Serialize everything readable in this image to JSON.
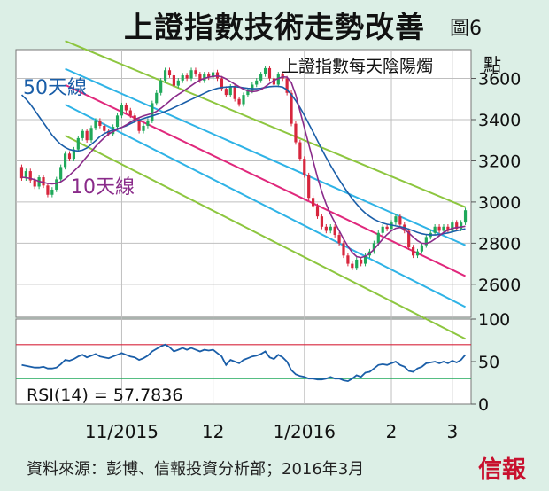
{
  "title": "上證指數技術走勢改善",
  "figure_label": "圖6",
  "source": "資料來源：彭博、信報投資分析部；2016年3月",
  "logo": "信報",
  "chart_data": {
    "type": "candlestick",
    "main_panel": {
      "legend_text": "上證指數每天陰陽燭",
      "unit_label": "點",
      "ylim": [
        2440,
        3740
      ],
      "yticks": [
        2600,
        2800,
        3000,
        3200,
        3400,
        3600
      ],
      "ma50_label": "50天線",
      "ma10_label": "10天線",
      "colors": {
        "up": "#1fa85a",
        "down": "#d7263d",
        "ma50": "#1a5ea8",
        "ma10": "#8a2b8a",
        "channel_mid": "#e0287c",
        "channel_blue": "#2fb3e6",
        "channel_green": "#8dc63f"
      },
      "candles": [
        [
          3170,
          3115
        ],
        [
          3115,
          3150
        ],
        [
          3150,
          3105
        ],
        [
          3105,
          3075
        ],
        [
          3075,
          3120
        ],
        [
          3120,
          3080
        ],
        [
          3080,
          3035
        ],
        [
          3035,
          3060
        ],
        [
          3060,
          3110
        ],
        [
          3110,
          3170
        ],
        [
          3170,
          3235
        ],
        [
          3235,
          3210
        ],
        [
          3210,
          3255
        ],
        [
          3255,
          3310
        ],
        [
          3310,
          3345
        ],
        [
          3345,
          3300
        ],
        [
          3300,
          3360
        ],
        [
          3360,
          3395
        ],
        [
          3395,
          3370
        ],
        [
          3370,
          3345
        ],
        [
          3345,
          3330
        ],
        [
          3330,
          3365
        ],
        [
          3365,
          3420
        ],
        [
          3420,
          3470
        ],
        [
          3470,
          3445
        ],
        [
          3445,
          3420
        ],
        [
          3420,
          3395
        ],
        [
          3395,
          3345
        ],
        [
          3345,
          3370
        ],
        [
          3370,
          3395
        ],
        [
          3395,
          3480
        ],
        [
          3480,
          3530
        ],
        [
          3530,
          3590
        ],
        [
          3590,
          3640
        ],
        [
          3640,
          3615
        ],
        [
          3615,
          3565
        ],
        [
          3565,
          3590
        ],
        [
          3590,
          3615
        ],
        [
          3615,
          3600
        ],
        [
          3600,
          3640
        ],
        [
          3640,
          3620
        ],
        [
          3620,
          3590
        ],
        [
          3590,
          3620
        ],
        [
          3620,
          3605
        ],
        [
          3605,
          3630
        ],
        [
          3630,
          3600
        ],
        [
          3600,
          3550
        ],
        [
          3550,
          3520
        ],
        [
          3520,
          3560
        ],
        [
          3560,
          3500
        ],
        [
          3500,
          3475
        ],
        [
          3475,
          3520
        ],
        [
          3520,
          3540
        ],
        [
          3540,
          3570
        ],
        [
          3570,
          3590
        ],
        [
          3590,
          3620
        ],
        [
          3620,
          3650
        ],
        [
          3650,
          3600
        ],
        [
          3600,
          3570
        ],
        [
          3570,
          3620
        ],
        [
          3620,
          3600
        ],
        [
          3600,
          3530
        ],
        [
          3530,
          3380
        ],
        [
          3380,
          3290
        ],
        [
          3290,
          3210
        ],
        [
          3210,
          3130
        ],
        [
          3130,
          3020
        ],
        [
          3020,
          2980
        ],
        [
          2980,
          2930
        ],
        [
          2930,
          2880
        ],
        [
          2880,
          2860
        ],
        [
          2860,
          2880
        ],
        [
          2880,
          2840
        ],
        [
          2840,
          2800
        ],
        [
          2800,
          2740
        ],
        [
          2740,
          2700
        ],
        [
          2700,
          2680
        ],
        [
          2680,
          2720
        ],
        [
          2720,
          2700
        ],
        [
          2700,
          2740
        ],
        [
          2740,
          2760
        ],
        [
          2760,
          2800
        ],
        [
          2800,
          2850
        ],
        [
          2850,
          2880
        ],
        [
          2880,
          2870
        ],
        [
          2870,
          2900
        ],
        [
          2900,
          2930
        ],
        [
          2930,
          2890
        ],
        [
          2890,
          2860
        ],
        [
          2860,
          2780
        ],
        [
          2780,
          2740
        ],
        [
          2740,
          2760
        ],
        [
          2760,
          2790
        ],
        [
          2790,
          2830
        ],
        [
          2830,
          2850
        ],
        [
          2850,
          2880
        ],
        [
          2880,
          2860
        ],
        [
          2860,
          2880
        ],
        [
          2880,
          2860
        ],
        [
          2860,
          2900
        ],
        [
          2900,
          2870
        ],
        [
          2870,
          2900
        ],
        [
          2900,
          2960
        ]
      ],
      "ma50": [
        3520,
        3500,
        3475,
        3445,
        3415,
        3385,
        3355,
        3325,
        3300,
        3280,
        3265,
        3255,
        3250,
        3248,
        3252,
        3262,
        3280,
        3298,
        3318,
        3332,
        3342,
        3350,
        3356,
        3362,
        3370,
        3380,
        3390,
        3398,
        3405,
        3412,
        3418,
        3425,
        3432,
        3440,
        3448,
        3458,
        3468,
        3478,
        3488,
        3498,
        3508,
        3518,
        3528,
        3538,
        3546,
        3552,
        3556,
        3558,
        3560,
        3560,
        3558,
        3555,
        3552,
        3550,
        3550,
        3552,
        3556,
        3560,
        3562,
        3562,
        3558,
        3545,
        3522,
        3492,
        3458,
        3420,
        3380,
        3340,
        3298,
        3256,
        3216,
        3178,
        3142,
        3108,
        3076,
        3045,
        3016,
        2990,
        2966,
        2946,
        2930,
        2916,
        2906,
        2898,
        2892,
        2888,
        2884,
        2880,
        2875,
        2868,
        2860,
        2852,
        2846,
        2842,
        2840,
        2840,
        2842,
        2846,
        2850,
        2855,
        2860,
        2865,
        2870
      ],
      "ma10": [
        3120,
        3118,
        3114,
        3108,
        3100,
        3095,
        3090,
        3088,
        3090,
        3098,
        3112,
        3130,
        3150,
        3170,
        3195,
        3220,
        3245,
        3270,
        3292,
        3312,
        3330,
        3342,
        3352,
        3362,
        3374,
        3388,
        3400,
        3410,
        3418,
        3424,
        3430,
        3440,
        3455,
        3472,
        3490,
        3508,
        3522,
        3536,
        3550,
        3565,
        3580,
        3592,
        3600,
        3606,
        3610,
        3612,
        3608,
        3598,
        3585,
        3572,
        3560,
        3548,
        3540,
        3536,
        3538,
        3546,
        3560,
        3576,
        3590,
        3600,
        3608,
        3606,
        3580,
        3520,
        3440,
        3360,
        3280,
        3200,
        3120,
        3050,
        2990,
        2940,
        2900,
        2860,
        2820,
        2785,
        2755,
        2735,
        2730,
        2736,
        2750,
        2770,
        2795,
        2820,
        2842,
        2860,
        2872,
        2876,
        2866,
        2850,
        2830,
        2812,
        2800,
        2798,
        2806,
        2820,
        2836,
        2852,
        2864,
        2872,
        2876,
        2878,
        2882
      ],
      "channel_mid": [
        [
          3670,
          2640
        ]
      ],
      "channel_blue_upper": [
        [
          3740,
          2790
        ]
      ],
      "channel_blue_lower": [
        [
          3580,
          2490
        ]
      ],
      "channel_green_upper": [
        [
          3870,
          2975
        ]
      ],
      "channel_green_lower": [
        [
          3430,
          2335
        ]
      ]
    },
    "rsi_panel": {
      "label": "RSI(14) = 57.7836",
      "ylim": [
        0,
        100
      ],
      "yticks": [
        0,
        50,
        100
      ],
      "overbought": 70,
      "oversold": 30,
      "colors": {
        "line": "#1a5ea8",
        "overbought": "#d7263d",
        "oversold": "#1fa85a"
      },
      "values": [
        46,
        45,
        44,
        43,
        43,
        44,
        42,
        42,
        43,
        47,
        52,
        51,
        53,
        56,
        58,
        55,
        57,
        59,
        56,
        55,
        54,
        56,
        58,
        60,
        58,
        56,
        55,
        52,
        54,
        57,
        62,
        65,
        68,
        70,
        67,
        62,
        64,
        66,
        64,
        66,
        64,
        62,
        64,
        63,
        64,
        60,
        56,
        46,
        52,
        50,
        48,
        52,
        54,
        56,
        57,
        59,
        62,
        55,
        53,
        58,
        55,
        50,
        40,
        35,
        33,
        32,
        30,
        30,
        29,
        29,
        30,
        32,
        30,
        30,
        28,
        27,
        30,
        34,
        32,
        37,
        38,
        42,
        46,
        47,
        46,
        48,
        50,
        46,
        44,
        39,
        38,
        42,
        44,
        48,
        49,
        50,
        48,
        50,
        48,
        51,
        49,
        52,
        58
      ]
    },
    "x_axis": {
      "ticks": [
        {
          "label": "11/2015",
          "index": 23
        },
        {
          "label": "12",
          "index": 44
        },
        {
          "label": "1/2016",
          "index": 65
        },
        {
          "label": "2",
          "index": 85
        },
        {
          "label": "3",
          "index": 99
        }
      ]
    }
  }
}
